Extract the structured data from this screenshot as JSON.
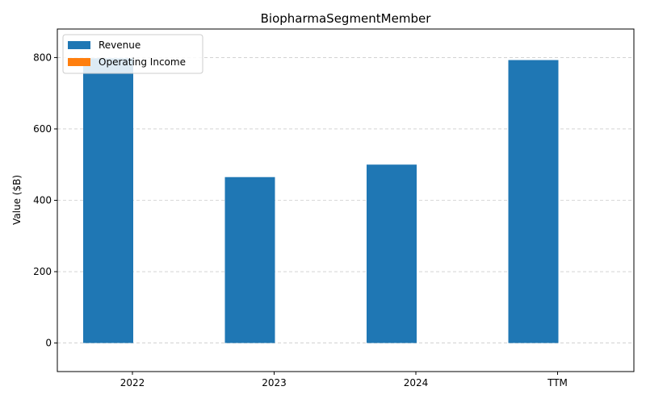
{
  "chart_data": {
    "type": "bar",
    "title": "BiopharmaSegmentMember",
    "xlabel": "",
    "ylabel": "Value ($B)",
    "categories": [
      "2022",
      "2023",
      "2024",
      "TTM"
    ],
    "series": [
      {
        "name": "Revenue",
        "color": "#1f77b4",
        "values": [
          798,
          465,
          500,
          793
        ]
      },
      {
        "name": "Operating Income",
        "color": "#ff7f0e",
        "values": [
          0,
          0,
          0,
          0
        ]
      }
    ],
    "ylim": [
      -80,
      880
    ],
    "yticks": [
      0,
      200,
      400,
      600,
      800
    ],
    "grid": "horizontal dashed",
    "legend_position": "top-left"
  }
}
